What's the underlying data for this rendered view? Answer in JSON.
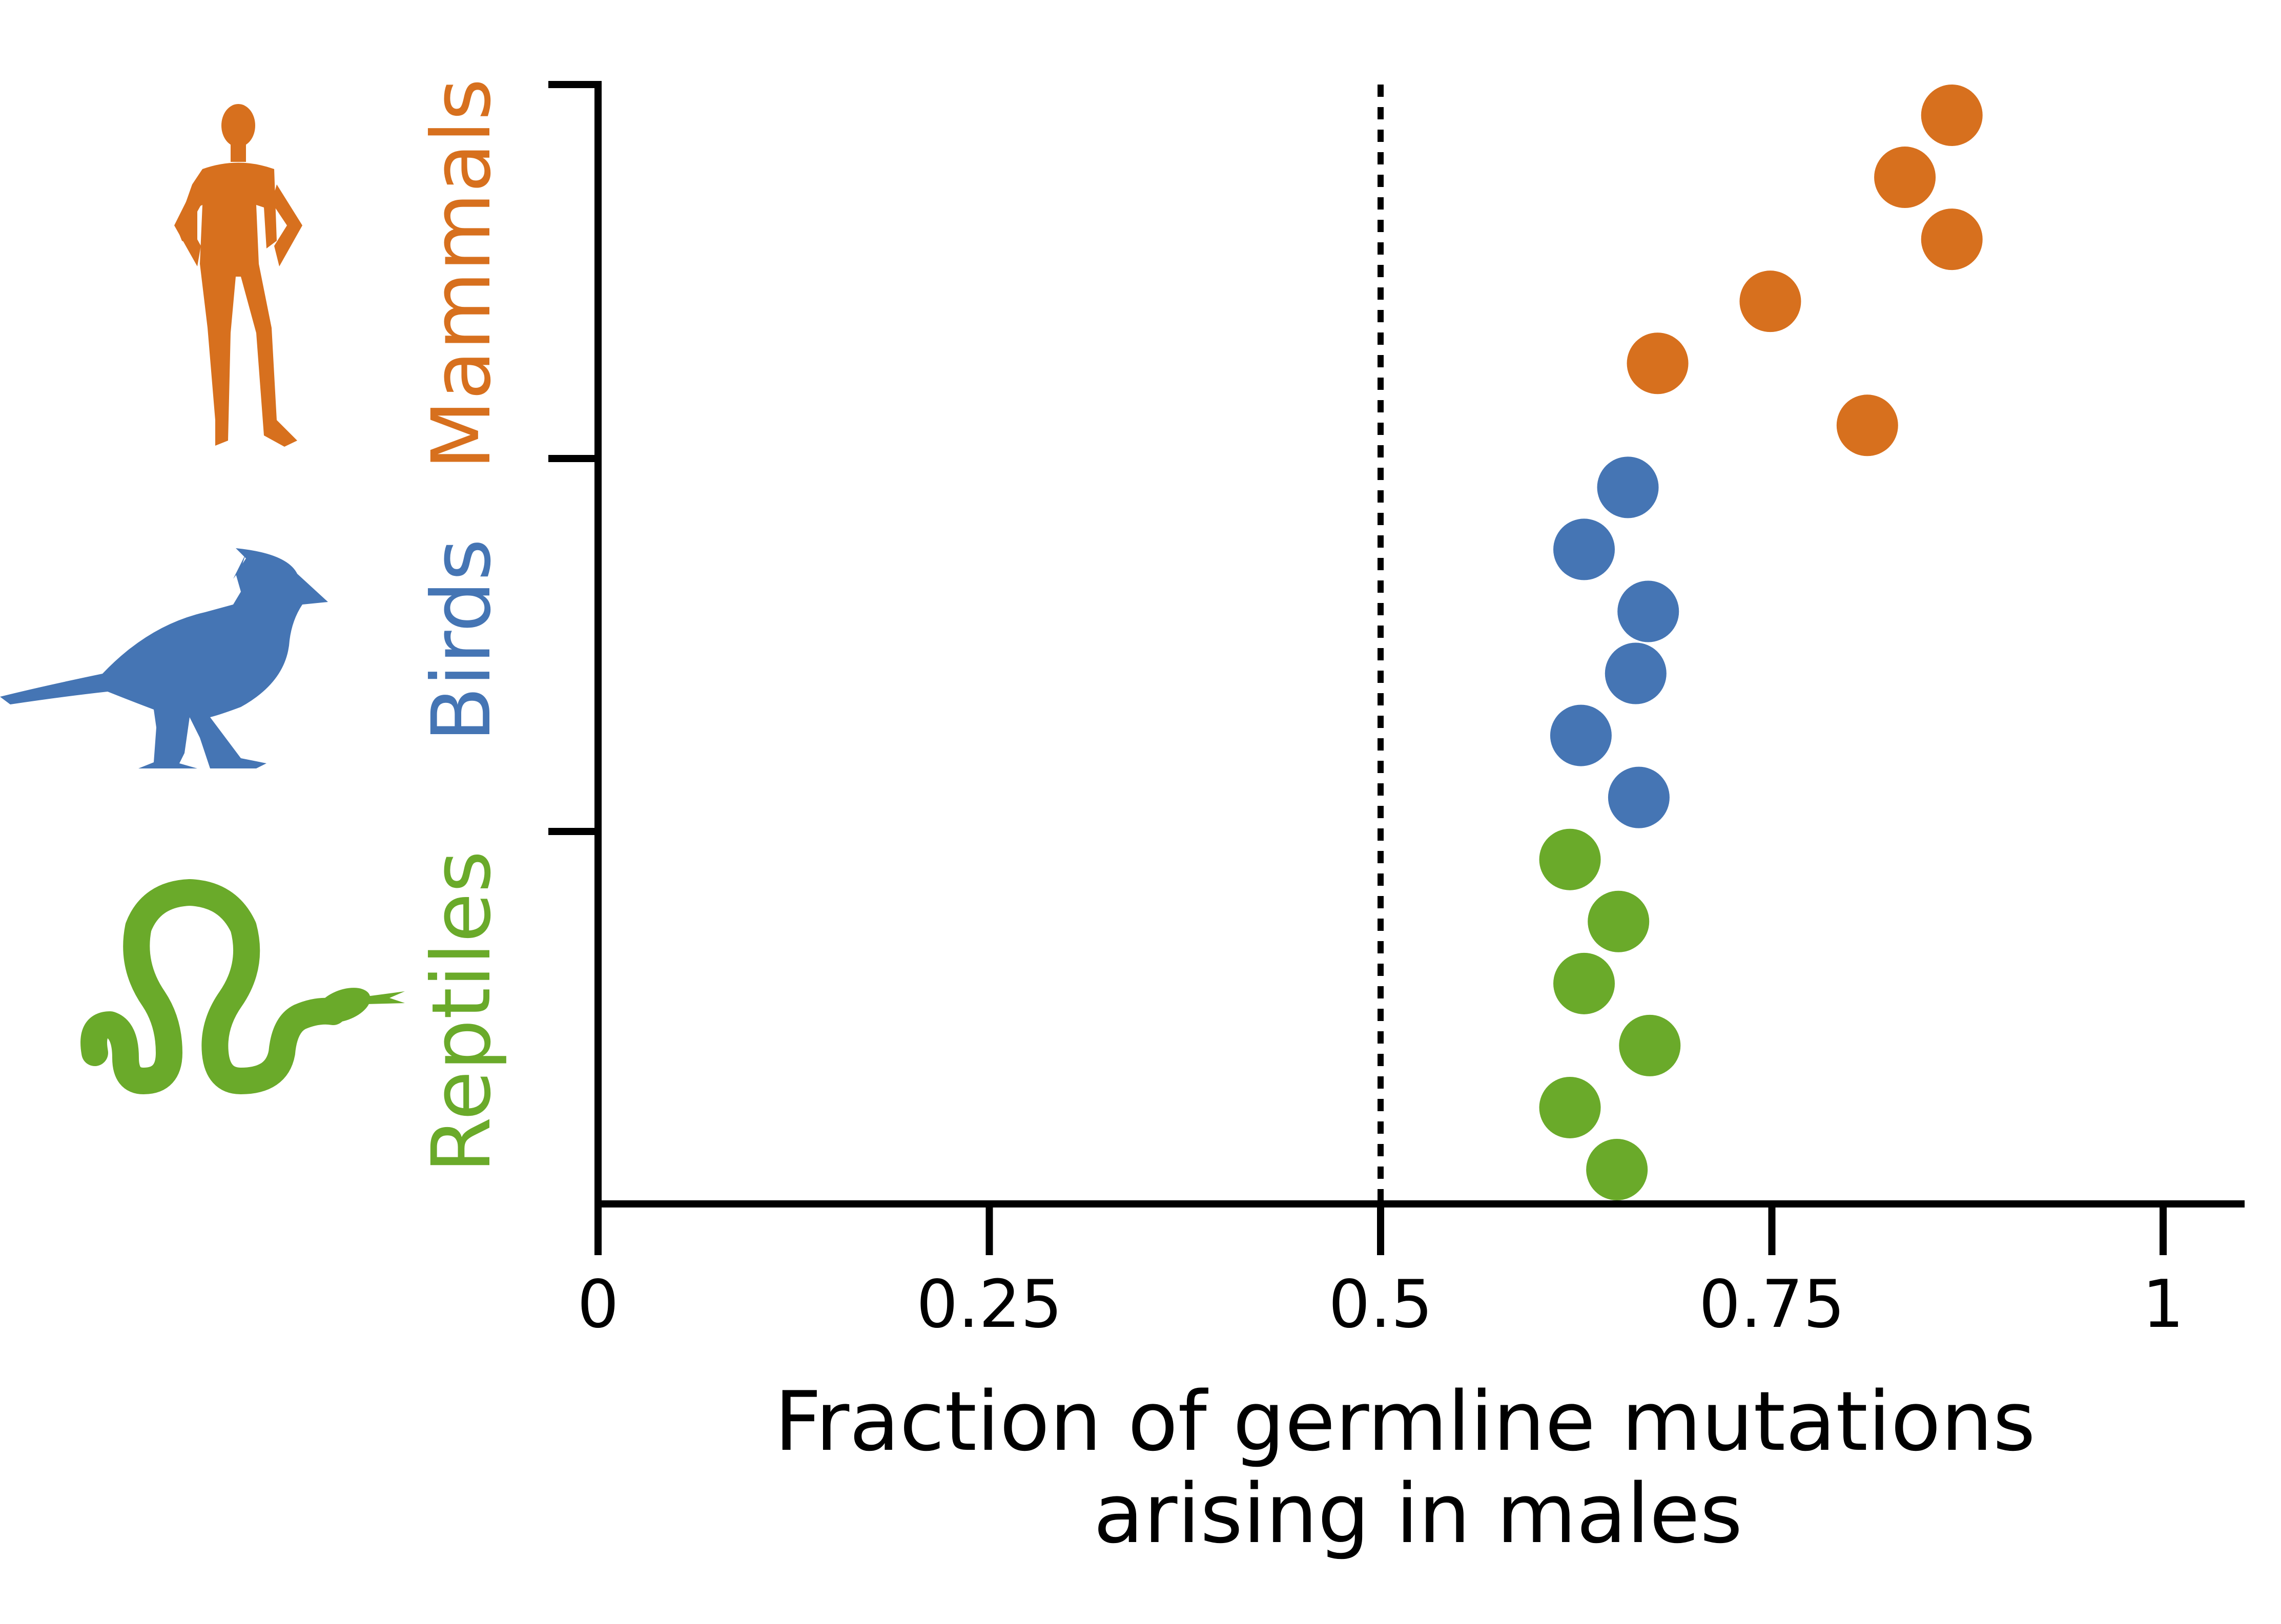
{
  "chart_data": {
    "type": "scatter",
    "xlabel_lines": [
      "Fraction of germline mutations",
      "arising in males"
    ],
    "xlim": [
      0,
      1
    ],
    "x_ticks": [
      0,
      0.25,
      0.5,
      0.75,
      1
    ],
    "x_tick_labels": [
      "0",
      "0.25",
      "0.5",
      "0.75",
      "1"
    ],
    "reference_line": {
      "x": 0.5,
      "style": "dotted"
    },
    "grid": false,
    "series": [
      {
        "name": "Reptiles",
        "color": "#6aaa2a",
        "icon": "snake-icon",
        "x": [
          0.651,
          0.621,
          0.672,
          0.63,
          0.652,
          0.621
        ]
      },
      {
        "name": "Birds",
        "color": "#4575b4",
        "icon": "bird-icon",
        "x": [
          0.665,
          0.628,
          0.663,
          0.671,
          0.63,
          0.658
        ]
      },
      {
        "name": "Mammals",
        "color": "#d7701e",
        "icon": "human-icon",
        "x": [
          0.811,
          0.677,
          0.749,
          0.865,
          0.835,
          0.865
        ]
      }
    ]
  }
}
